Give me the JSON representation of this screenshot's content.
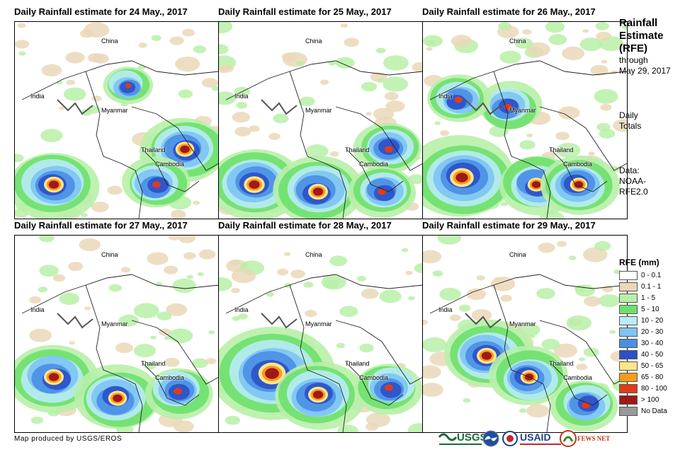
{
  "panels": [
    {
      "title": "Daily Rainfall estimate for 24 May., 2017"
    },
    {
      "title": "Daily Rainfall estimate for 25 May., 2017"
    },
    {
      "title": "Daily Rainfall estimate for 26 May., 2017"
    },
    {
      "title": "Daily Rainfall estimate for 27 May., 2017"
    },
    {
      "title": "Daily Rainfall estimate for 28 May., 2017"
    },
    {
      "title": "Daily Rainfall estimate for 29 May., 2017"
    }
  ],
  "places": {
    "china": "China",
    "india": "India",
    "myanmar": "Myanmar",
    "thailand": "Thailand",
    "cambodia": "Cambodia"
  },
  "side": {
    "title_line1": "Rainfall",
    "title_line2": "Estimate",
    "title_line3": "(RFE)",
    "through_line1": "through",
    "through_line2": "May 29, 2017",
    "daily_line1": "Daily",
    "daily_line2": "Totals",
    "source_line1": "Data:",
    "source_line2": "NOAA-",
    "source_line3": "RFE2.0"
  },
  "legend": {
    "title": "RFE (mm)",
    "items": [
      {
        "label": "0 - 0.1",
        "color": "#ffffff"
      },
      {
        "label": "0.1 - 1",
        "color": "#ead8b8"
      },
      {
        "label": "1 - 5",
        "color": "#b8f0a8"
      },
      {
        "label": "5 - 10",
        "color": "#6ee06e"
      },
      {
        "label": "10 - 20",
        "color": "#b8ecf6"
      },
      {
        "label": "20 - 30",
        "color": "#7ec4f4"
      },
      {
        "label": "30 - 40",
        "color": "#4a8ee6"
      },
      {
        "label": "40 - 50",
        "color": "#2a50c8"
      },
      {
        "label": "50 - 65",
        "color": "#fce68a"
      },
      {
        "label": "65 - 80",
        "color": "#f89a1e"
      },
      {
        "label": "80 - 100",
        "color": "#e23a1a"
      },
      {
        "label": "> 100",
        "color": "#a01818"
      },
      {
        "label": "No Data",
        "color": "#999999"
      }
    ]
  },
  "credit": "Map produced by USGS/EROS",
  "logos": {
    "usgs": "USGS",
    "usaid": "USAID",
    "fews": "FEWS NET"
  }
}
